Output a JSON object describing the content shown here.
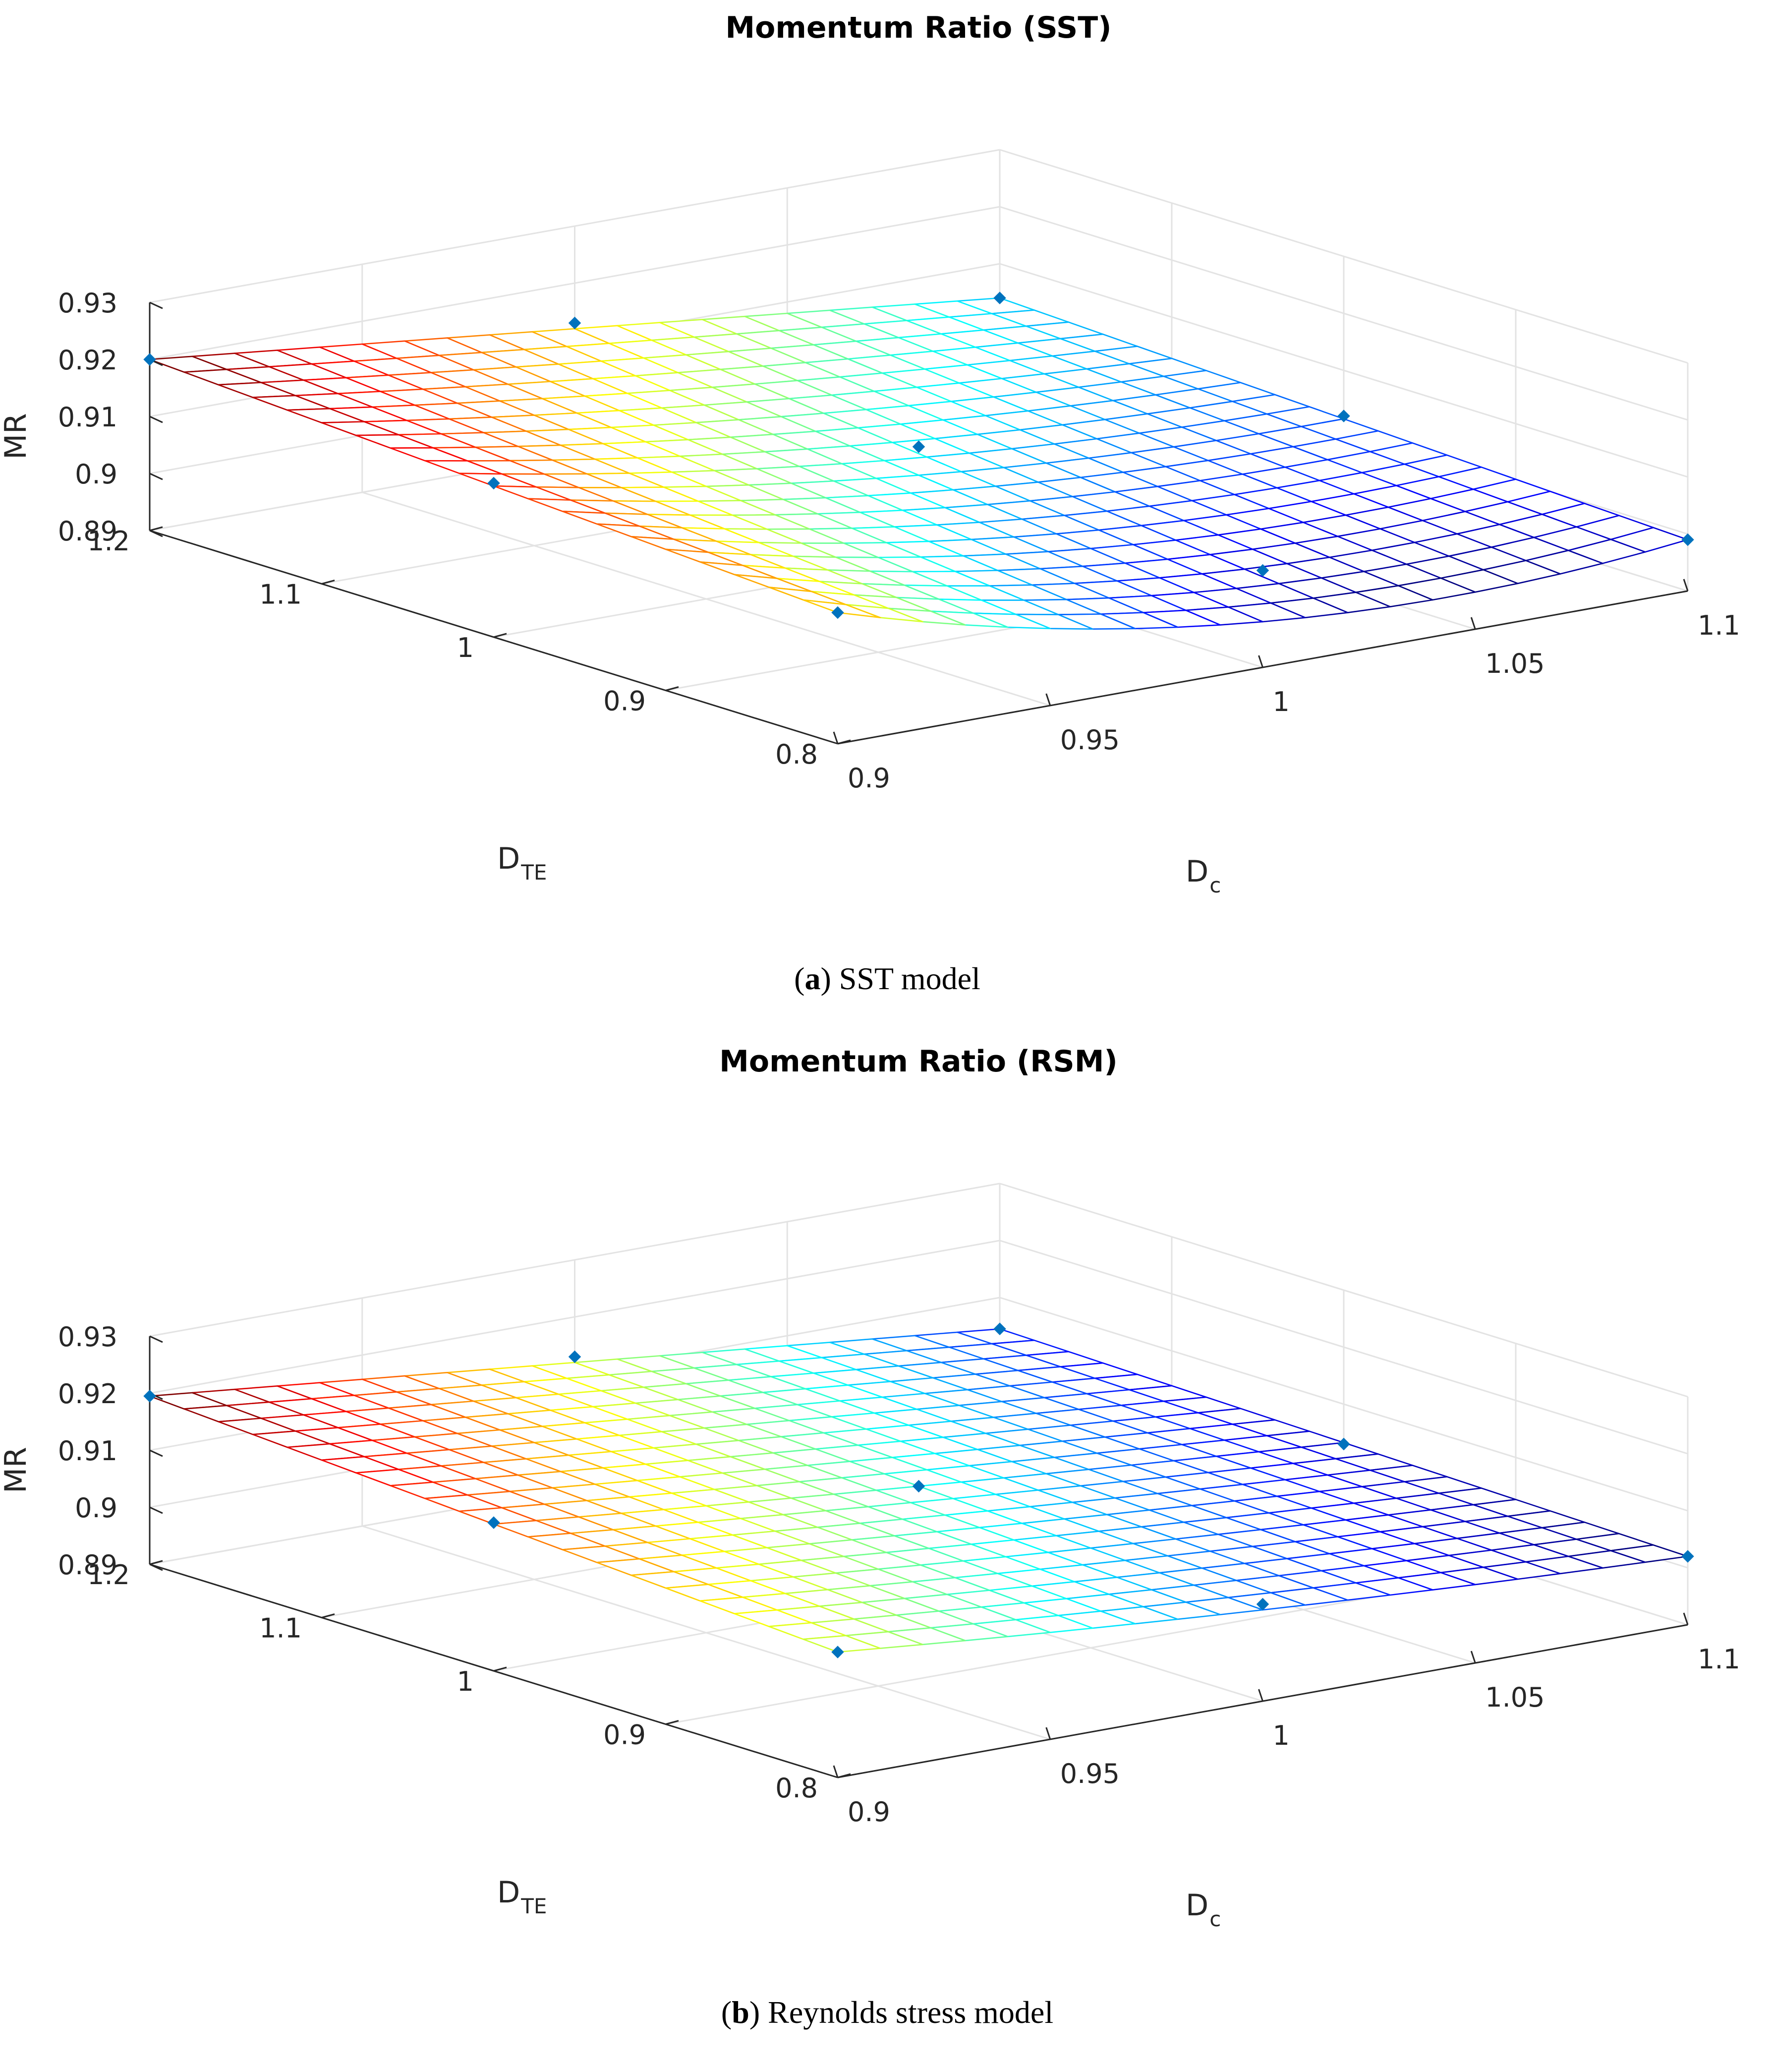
{
  "chart_data": [
    {
      "type": "surface",
      "title": "Momentum Ratio (SST)",
      "caption_label": "a",
      "caption_text": "SST model",
      "xlabel": "D",
      "xlabel_sub": "c",
      "ylabel": "D",
      "ylabel_sub": "TE",
      "zlabel": "MR",
      "xlim": [
        0.9,
        1.1
      ],
      "ylim": [
        0.8,
        1.2
      ],
      "zlim": [
        0.89,
        0.93
      ],
      "xticks": [
        "0.9",
        "0.95",
        "1",
        "1.05",
        "1.1"
      ],
      "yticks": [
        "0.8",
        "0.9",
        "1",
        "1.1",
        "1.2"
      ],
      "zticks": [
        "0.89",
        "0.9",
        "0.91",
        "0.92",
        "0.93"
      ],
      "colormap": "jet",
      "grid": true,
      "surface_model": {
        "corners": {
          "x_lo_y_lo": 0.913,
          "x_hi_y_lo": 0.899,
          "x_lo_y_hi": 0.92,
          "x_hi_y_hi": 0.904
        },
        "curvature": 0.008
      },
      "points": [
        {
          "x": 0.9,
          "y": 1.2,
          "z": 0.92
        },
        {
          "x": 1.0,
          "y": 1.2,
          "z": 0.913
        },
        {
          "x": 1.1,
          "y": 1.2,
          "z": 0.904
        },
        {
          "x": 0.9,
          "y": 1.0,
          "z": 0.917
        },
        {
          "x": 1.0,
          "y": 1.0,
          "z": 0.91
        },
        {
          "x": 1.1,
          "y": 1.0,
          "z": 0.902
        },
        {
          "x": 0.9,
          "y": 0.8,
          "z": 0.913
        },
        {
          "x": 1.0,
          "y": 0.8,
          "z": 0.907
        },
        {
          "x": 1.1,
          "y": 0.8,
          "z": 0.899
        }
      ]
    },
    {
      "type": "surface",
      "title": "Momentum Ratio (RSM)",
      "caption_label": "b",
      "caption_text": "Reynolds stress model",
      "xlabel": "D",
      "xlabel_sub": "c",
      "ylabel": "D",
      "ylabel_sub": "TE",
      "zlabel": "MR",
      "xlim": [
        0.9,
        1.1
      ],
      "ylim": [
        0.8,
        1.2
      ],
      "zlim": [
        0.89,
        0.93
      ],
      "xticks": [
        "0.9",
        "0.95",
        "1",
        "1.05",
        "1.1"
      ],
      "yticks": [
        "0.8",
        "0.9",
        "1",
        "1.1",
        "1.2"
      ],
      "zticks": [
        "0.89",
        "0.9",
        "0.91",
        "0.92",
        "0.93"
      ],
      "colormap": "jet",
      "grid": true,
      "surface_model": {
        "corners": {
          "x_lo_y_lo": 0.912,
          "x_hi_y_lo": 0.902,
          "x_lo_y_hi": 0.9195,
          "x_hi_y_hi": 0.9045
        },
        "curvature": 0.001
      },
      "points": [
        {
          "x": 0.9,
          "y": 1.2,
          "z": 0.9195
        },
        {
          "x": 1.0,
          "y": 1.2,
          "z": 0.913
        },
        {
          "x": 1.1,
          "y": 1.2,
          "z": 0.9045
        },
        {
          "x": 0.9,
          "y": 1.0,
          "z": 0.916
        },
        {
          "x": 1.0,
          "y": 1.0,
          "z": 0.909
        },
        {
          "x": 1.1,
          "y": 1.0,
          "z": 0.903
        },
        {
          "x": 0.9,
          "y": 0.8,
          "z": 0.912
        },
        {
          "x": 1.0,
          "y": 0.8,
          "z": 0.907
        },
        {
          "x": 1.1,
          "y": 0.8,
          "z": 0.902
        }
      ]
    }
  ]
}
